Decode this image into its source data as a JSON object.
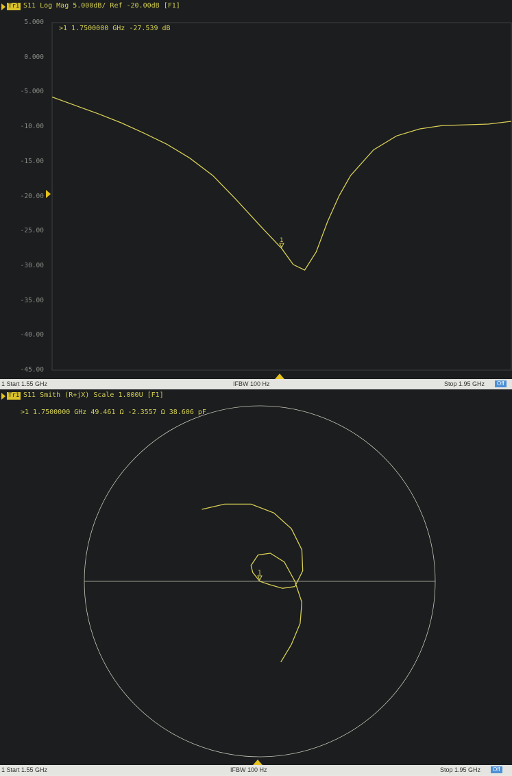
{
  "colors": {
    "trace": "#d8cf55",
    "grid_circle": "#c8c8b8",
    "accent": "#e6c21d",
    "background": "#1b1d1f"
  },
  "top_panel": {
    "trace_label": "Tr1",
    "title": "S11 Log Mag 5.000dB/ Ref -20.00dB [F1]",
    "marker_readout": ">1  1.7500000 GHz  -27.539 dB",
    "marker_label": "1",
    "y_ticks": [
      "5.000",
      "0.000",
      "-5.000",
      "-10.00",
      "-15.00",
      "-20.00",
      "-25.00",
      "-30.00",
      "-35.00",
      "-40.00",
      "-45.00"
    ]
  },
  "top_footer": {
    "start": "1  Start 1.55 GHz",
    "ifbw": "IFBW 100 Hz",
    "stop": "Stop 1.95 GHz",
    "badge": "Off"
  },
  "bottom_panel": {
    "trace_label": "Tr1",
    "title": "S11 Smith (R+jX) Scale 1.000U [F1]",
    "marker_readout": ">1  1.7500000 GHz  49.461 Ω  -2.3557 Ω  38.606 pF",
    "marker_label": "1"
  },
  "bottom_footer": {
    "start": "1  Start 1.55 GHz",
    "ifbw": "IFBW 100 Hz",
    "stop": "Stop 1.95 GHz",
    "badge": "Off"
  },
  "chart_data": [
    {
      "type": "line",
      "title": "S11 Log Mag 5.000dB/ Ref -20.00dB [F1]",
      "xlabel": "",
      "ylabel": "",
      "x_unit": "GHz",
      "y_unit": "dB",
      "xlim": [
        1.55,
        1.95
      ],
      "ylim": [
        -45,
        5
      ],
      "grid": false,
      "x": [
        1.55,
        1.57,
        1.59,
        1.61,
        1.63,
        1.65,
        1.67,
        1.69,
        1.71,
        1.73,
        1.75,
        1.76,
        1.77,
        1.78,
        1.79,
        1.8,
        1.81,
        1.83,
        1.85,
        1.87,
        1.89,
        1.91,
        1.93,
        1.95
      ],
      "series": [
        {
          "values": [
            -5.7,
            -6.9,
            -8.1,
            -9.4,
            -10.9,
            -12.5,
            -14.5,
            -17.0,
            -20.4,
            -24.0,
            -27.5,
            -29.8,
            -30.6,
            -28.0,
            -23.6,
            -19.9,
            -17.0,
            -13.3,
            -11.3,
            -10.3,
            -9.8,
            -9.7,
            -9.6,
            -9.2
          ]
        }
      ],
      "markers": [
        {
          "label": "1",
          "x": 1.75,
          "y": -27.539
        }
      ]
    },
    {
      "type": "scatter",
      "title": "S11 Smith (R+jX) Scale 1.000U [F1]",
      "xlabel": "",
      "ylabel": "",
      "xlim": [
        -1,
        1
      ],
      "ylim": [
        -1,
        1
      ],
      "grid": false,
      "series": [
        {
          "x": [
            -0.33,
            -0.2,
            -0.05,
            0.08,
            0.18,
            0.24,
            0.245,
            0.2,
            0.13,
            0.06,
            0.0,
            -0.04,
            -0.05,
            -0.01,
            0.06,
            0.14,
            0.2,
            0.24,
            0.23,
            0.18,
            0.12
          ],
          "y": [
            0.41,
            0.44,
            0.44,
            0.39,
            0.3,
            0.18,
            0.06,
            -0.03,
            -0.04,
            -0.02,
            0.0,
            0.05,
            0.09,
            0.15,
            0.16,
            0.11,
            0.0,
            -0.12,
            -0.24,
            -0.36,
            -0.46
          ]
        }
      ],
      "markers": [
        {
          "label": "1",
          "x": 0.0,
          "y": 0.0
        }
      ]
    }
  ]
}
